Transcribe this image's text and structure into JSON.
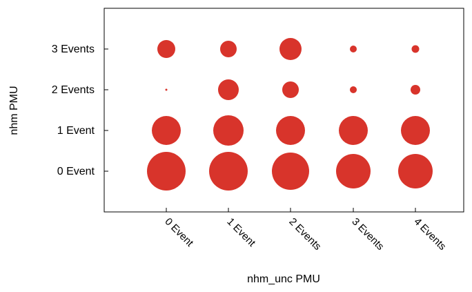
{
  "chart_data": {
    "type": "scatter",
    "subtype": "bubble",
    "title": "",
    "xlabel": "nhm_unc PMU",
    "ylabel": "nhm PMU",
    "x_categories": [
      "0 Event",
      "1 Event",
      "2 Events",
      "3 Events",
      "4 Events"
    ],
    "y_categories": [
      "0 Event",
      "1 Event",
      "2 Events",
      "3 Events"
    ],
    "grid": false,
    "legend": "none",
    "marker_color": "#d8342b",
    "points": [
      {
        "x": "0 Event",
        "y": "0 Event",
        "size": 28
      },
      {
        "x": "1 Event",
        "y": "0 Event",
        "size": 28
      },
      {
        "x": "2 Events",
        "y": "0 Event",
        "size": 27
      },
      {
        "x": "3 Events",
        "y": "0 Event",
        "size": 25
      },
      {
        "x": "4 Events",
        "y": "0 Event",
        "size": 25
      },
      {
        "x": "0 Event",
        "y": "1 Event",
        "size": 21
      },
      {
        "x": "1 Event",
        "y": "1 Event",
        "size": 22
      },
      {
        "x": "2 Events",
        "y": "1 Event",
        "size": 21
      },
      {
        "x": "3 Events",
        "y": "1 Event",
        "size": 21
      },
      {
        "x": "4 Events",
        "y": "1 Event",
        "size": 21
      },
      {
        "x": "0 Event",
        "y": "2 Events",
        "size": 1.5
      },
      {
        "x": "1 Event",
        "y": "2 Events",
        "size": 15
      },
      {
        "x": "2 Events",
        "y": "2 Events",
        "size": 12
      },
      {
        "x": "3 Events",
        "y": "2 Events",
        "size": 5
      },
      {
        "x": "4 Events",
        "y": "2 Events",
        "size": 7
      },
      {
        "x": "0 Event",
        "y": "3 Events",
        "size": 13
      },
      {
        "x": "1 Event",
        "y": "3 Events",
        "size": 12
      },
      {
        "x": "2 Events",
        "y": "3 Events",
        "size": 16
      },
      {
        "x": "3 Events",
        "y": "3 Events",
        "size": 5
      },
      {
        "x": "4 Events",
        "y": "3 Events",
        "size": 5.5
      }
    ]
  }
}
